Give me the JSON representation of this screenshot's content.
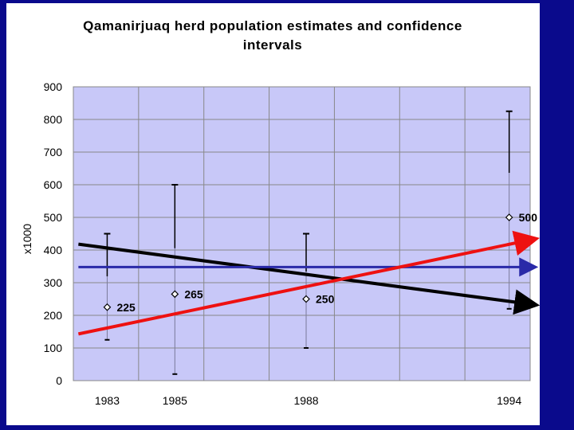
{
  "chart_data": {
    "type": "scatter",
    "title_lines": [
      "Qamanirjuaq herd population estimates and confidence",
      "intervals"
    ],
    "ylabel": "x1000",
    "xlabel": "",
    "ylim": [
      0,
      900
    ],
    "yticks": [
      0,
      100,
      200,
      300,
      400,
      500,
      600,
      700,
      800,
      900
    ],
    "categories": [
      "1983",
      "1985",
      "1988",
      "1994"
    ],
    "x_positions": [
      1983,
      1985,
      1988.88,
      1994.88
    ],
    "xlim": [
      1982,
      1995.5
    ],
    "points": [
      {
        "year": "1983",
        "value": 225,
        "label": "225",
        "ci_low": 125,
        "ci_high": 450
      },
      {
        "year": "1985",
        "value": 265,
        "label": "265",
        "ci_low": 20,
        "ci_high": 600
      },
      {
        "year": "1988",
        "value": 250,
        "label": "250",
        "ci_low": 100,
        "ci_high": 450
      },
      {
        "year": "1994",
        "value": 500,
        "label": "500",
        "ci_low": 220,
        "ci_high": 825
      }
    ],
    "trend_lines": [
      {
        "name": "black trend",
        "color": "#000000",
        "start": [
          1982.15,
          418
        ],
        "end": [
          1995.6,
          233
        ]
      },
      {
        "name": "blue trend",
        "color": "#2a2aa8",
        "start": [
          1982.15,
          348
        ],
        "end": [
          1995.6,
          348
        ]
      },
      {
        "name": "red trend",
        "color": "#ee1111",
        "start": [
          1982.15,
          143
        ],
        "end": [
          1995.6,
          433
        ]
      }
    ],
    "colors": {
      "plot_bg": "#c8c8f8",
      "grid": "#888888",
      "background": "#0a0a8c"
    }
  }
}
